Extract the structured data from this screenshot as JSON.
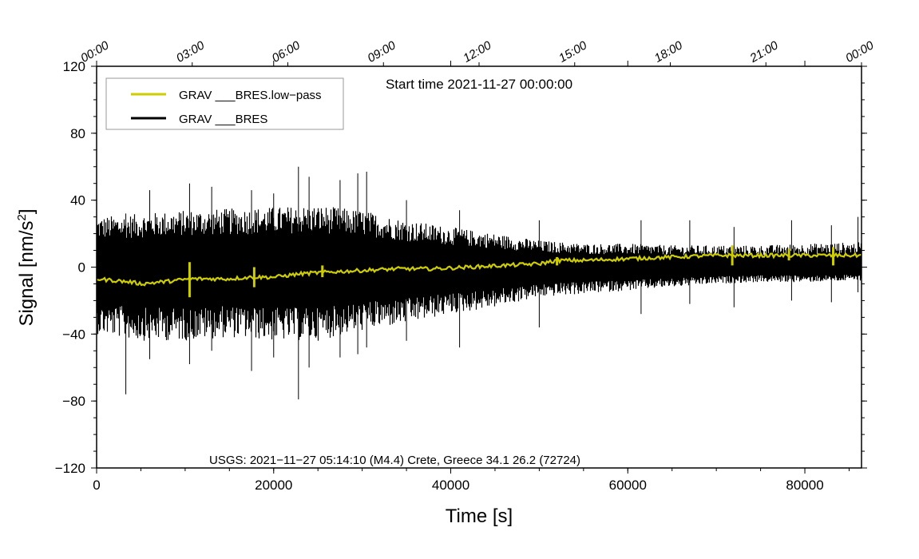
{
  "chart_data": {
    "type": "line",
    "title": "",
    "start_time_label": "Start time 2021-11-27 00:00:00",
    "xlabel": "Time [s]",
    "ylabel": "Signal [nm/s",
    "ylabel_sup": "2",
    "ylabel_end": "]",
    "xlim": [
      0,
      86400
    ],
    "ylim": [
      -120,
      120
    ],
    "x_ticks": [
      {
        "value": 0,
        "label": "0"
      },
      {
        "value": 20000,
        "label": "20000"
      },
      {
        "value": 40000,
        "label": "40000"
      },
      {
        "value": 60000,
        "label": "60000"
      },
      {
        "value": 80000,
        "label": "80000"
      }
    ],
    "y_ticks": [
      {
        "value": 120,
        "label": "120"
      },
      {
        "value": 80,
        "label": "80"
      },
      {
        "value": 40,
        "label": "40"
      },
      {
        "value": 0,
        "label": "0"
      },
      {
        "value": -40,
        "label": "−40"
      },
      {
        "value": -80,
        "label": "−80"
      },
      {
        "value": -120,
        "label": "−120"
      }
    ],
    "top_ticks": [
      {
        "value": 0,
        "label": "00:00"
      },
      {
        "value": 10800,
        "label": "03:00"
      },
      {
        "value": 21600,
        "label": "06:00"
      },
      {
        "value": 32400,
        "label": "09:00"
      },
      {
        "value": 43200,
        "label": "12:00"
      },
      {
        "value": 54000,
        "label": "15:00"
      },
      {
        "value": 64800,
        "label": "18:00"
      },
      {
        "value": 75600,
        "label": "21:00"
      },
      {
        "value": 86400,
        "label": "00:00"
      }
    ],
    "legend": {
      "position": "top-left",
      "entries": [
        {
          "label": "GRAV ___BRES.low−pass",
          "color": "#cdcd00"
        },
        {
          "label": "GRAV ___BRES",
          "color": "#000000"
        }
      ]
    },
    "annotation": "USGS: 2021−11−27 05:14:10 (M4.4) Crete, Greece 34.1 26.2 (72724)",
    "series": [
      {
        "name": "GRAV ___BRES",
        "color": "#000000",
        "kind": "noise_envelope",
        "x": [
          0,
          5000,
          10000,
          15000,
          20000,
          25000,
          30000,
          35000,
          40000,
          45000,
          50000,
          55000,
          60000,
          65000,
          70000,
          75000,
          80000,
          86400
        ],
        "upper": [
          30,
          32,
          34,
          35,
          36,
          37,
          34,
          28,
          24,
          20,
          16,
          14,
          14,
          13,
          13,
          13,
          14,
          15
        ],
        "lower": [
          -40,
          -44,
          -44,
          -42,
          -44,
          -44,
          -38,
          -34,
          -28,
          -24,
          -18,
          -16,
          -14,
          -12,
          -10,
          -9,
          -9,
          -8
        ],
        "spikes": [
          {
            "x": 3300,
            "min": -76,
            "max": 32
          },
          {
            "x": 6000,
            "min": -55,
            "max": 46
          },
          {
            "x": 10500,
            "min": -58,
            "max": 50
          },
          {
            "x": 13000,
            "min": -50,
            "max": 48
          },
          {
            "x": 17500,
            "min": -62,
            "max": 46
          },
          {
            "x": 20000,
            "min": -54,
            "max": 44
          },
          {
            "x": 22800,
            "min": -79,
            "max": 60
          },
          {
            "x": 24000,
            "min": -60,
            "max": 54
          },
          {
            "x": 27500,
            "min": -54,
            "max": 52
          },
          {
            "x": 29500,
            "min": -52,
            "max": 56
          },
          {
            "x": 30500,
            "min": -48,
            "max": 57
          },
          {
            "x": 35000,
            "min": -44,
            "max": 40
          },
          {
            "x": 41000,
            "min": -48,
            "max": 34
          },
          {
            "x": 50000,
            "min": -36,
            "max": 28
          },
          {
            "x": 61500,
            "min": -28,
            "max": 28
          },
          {
            "x": 67000,
            "min": -22,
            "max": 28
          },
          {
            "x": 72000,
            "min": -24,
            "max": 24
          },
          {
            "x": 78500,
            "min": -20,
            "max": 28
          },
          {
            "x": 83000,
            "min": -21,
            "max": 25
          },
          {
            "x": 86000,
            "min": -15,
            "max": 30
          }
        ]
      },
      {
        "name": "GRAV ___BRES.low−pass",
        "color": "#cdcd00",
        "kind": "line",
        "x": [
          0,
          2000,
          4000,
          5000,
          7000,
          9000,
          10500,
          12000,
          15000,
          17500,
          20000,
          23000,
          26000,
          30000,
          34000,
          38000,
          42000,
          46000,
          50000,
          52000,
          55000,
          60000,
          65000,
          70000,
          72000,
          75000,
          80000,
          83000,
          86400
        ],
        "y": [
          -7,
          -8,
          -9,
          -10,
          -9,
          -8,
          -7,
          -7,
          -7,
          -6,
          -6,
          -4,
          -3,
          -2,
          -1,
          -1,
          0,
          1,
          2,
          4,
          4,
          5,
          6,
          7,
          7,
          7,
          7,
          7,
          7
        ],
        "bursts": [
          {
            "x": 10500,
            "min": -18,
            "max": 3
          },
          {
            "x": 17800,
            "min": -12,
            "max": 0
          },
          {
            "x": 25500,
            "min": -6,
            "max": 1
          },
          {
            "x": 52000,
            "min": 1,
            "max": 6
          },
          {
            "x": 71800,
            "min": 1,
            "max": 13
          },
          {
            "x": 78200,
            "min": 4,
            "max": 11
          },
          {
            "x": 83200,
            "min": 1,
            "max": 12
          }
        ]
      }
    ]
  }
}
